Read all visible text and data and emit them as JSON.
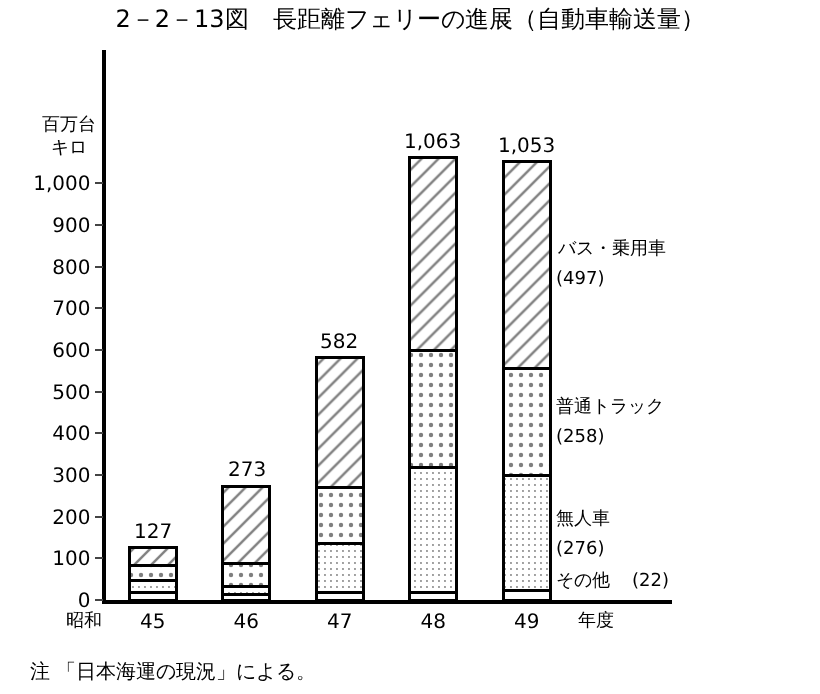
{
  "chart_data": {
    "type": "bar",
    "stacked": true,
    "title": "2－2－13図　長距離フェリーの進展（自動車輸送量）",
    "ylabel": "百万台キロ",
    "categories": [
      "45",
      "46",
      "47",
      "48",
      "49"
    ],
    "series": [
      {
        "name": "その他",
        "color": "#ffffff",
        "values": [
          19,
          13,
          19,
          19,
          22
        ]
      },
      {
        "name": "無人車",
        "color": "#000000",
        "values": [
          29,
          19,
          116,
          298,
          276
        ]
      },
      {
        "name": "普通トラック",
        "color": "#000000",
        "values": [
          35,
          56,
          135,
          283,
          258
        ]
      },
      {
        "name": "バス・乗用車",
        "color": "#000000",
        "values": [
          44,
          185,
          312,
          463,
          497
        ]
      }
    ],
    "totals": [
      "127",
      "273",
      "582",
      "1,063",
      "1,053"
    ],
    "ylim": [
      0,
      1320
    ],
    "yticks": [
      0,
      100,
      200,
      300,
      400,
      500,
      600,
      700,
      800,
      900,
      {
        "value": 1000,
        "label": "1,000"
      }
    ],
    "annotations": [
      "昭和",
      "年度",
      "注 「日本海運の現況」による。",
      "(22)",
      "(276)",
      "(258)",
      "(497)"
    ]
  }
}
